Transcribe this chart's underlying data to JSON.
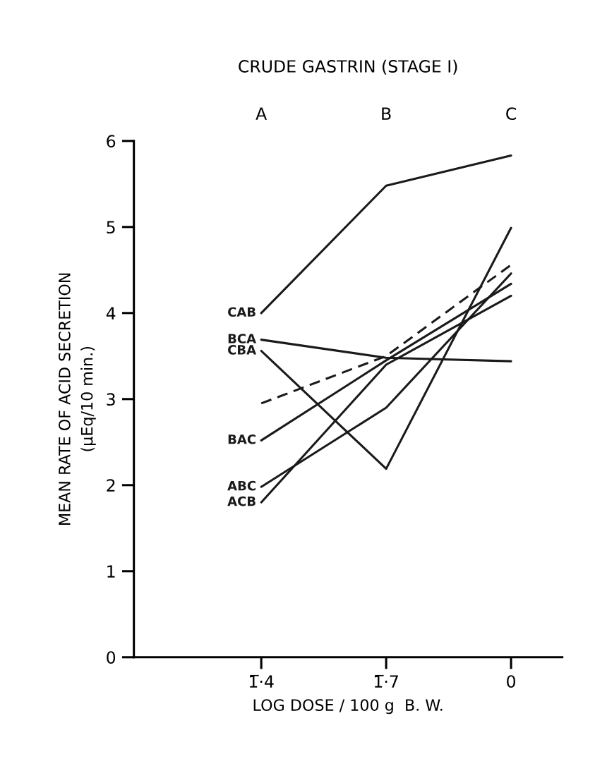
{
  "chart_data": {
    "type": "line",
    "title": "CRUDE GASTRIN (STAGE I)",
    "xlabel": "LOG DOSE / 100 g  B. W.",
    "ylabel": "MEAN RATE OF ACID SECRETION\n(µEq/10 min.)",
    "categories": [
      "1̅·4",
      "1̅·7",
      "0"
    ],
    "ylim": [
      0,
      6
    ],
    "yticks": [
      0,
      1,
      2,
      3,
      4,
      5,
      6
    ],
    "grid": false,
    "legend": false,
    "marker": "none",
    "annotations": [
      "A",
      "B",
      "C"
    ],
    "series": [
      {
        "name": "CAB",
        "color": "#1a1a1a",
        "line_style": "solid",
        "values": [
          4.0,
          5.48,
          5.83
        ]
      },
      {
        "name": "BCA",
        "color": "#1a1a1a",
        "line_style": "solid",
        "values": [
          3.69,
          3.48,
          3.44
        ]
      },
      {
        "name": "CBA",
        "color": "#1a1a1a",
        "line_style": "solid",
        "values": [
          3.56,
          2.19,
          4.99
        ]
      },
      {
        "name": "BAC",
        "color": "#1a1a1a",
        "line_style": "solid",
        "values": [
          2.52,
          3.45,
          4.34
        ]
      },
      {
        "name": "ABC",
        "color": "#1a1a1a",
        "line_style": "solid",
        "values": [
          1.98,
          2.9,
          4.46
        ]
      },
      {
        "name": "ACB",
        "color": "#1a1a1a",
        "line_style": "solid",
        "values": [
          1.8,
          3.4,
          4.2
        ]
      },
      {
        "color": "#1a1a1a",
        "line_style": "dashed",
        "values": [
          2.95,
          3.5,
          4.56
        ]
      }
    ]
  }
}
